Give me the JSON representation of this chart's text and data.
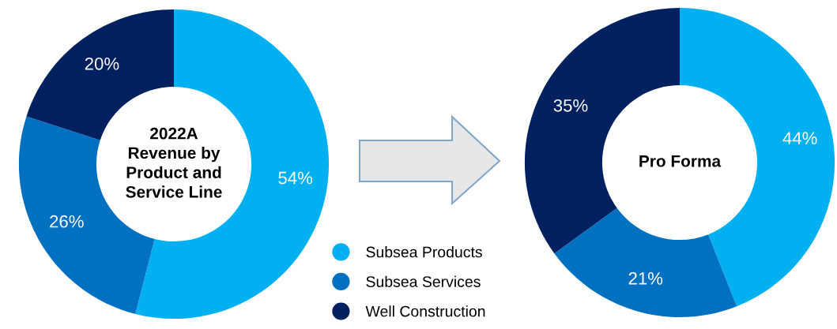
{
  "chart_data": [
    {
      "type": "donut",
      "title": "2022A\nRevenue by\nProduct and\nService Line",
      "categories": [
        "Subsea Products",
        "Subsea Services",
        "Well Construction"
      ],
      "values": [
        54,
        26,
        20
      ],
      "value_labels": [
        "54%",
        "26%",
        "20%"
      ],
      "colors": [
        "#00b0f0",
        "#0070c0",
        "#002060"
      ],
      "legend": "bottom right",
      "marker": "circle"
    },
    {
      "type": "donut",
      "title": "Pro Forma",
      "categories": [
        null,
        null,
        null
      ],
      "values": [
        44,
        21,
        35
      ],
      "value_labels": [
        "44%",
        "21%",
        "35%"
      ],
      "colors": [
        "#00b0f0",
        "#0070c0",
        "#002060"
      ]
    }
  ]
}
